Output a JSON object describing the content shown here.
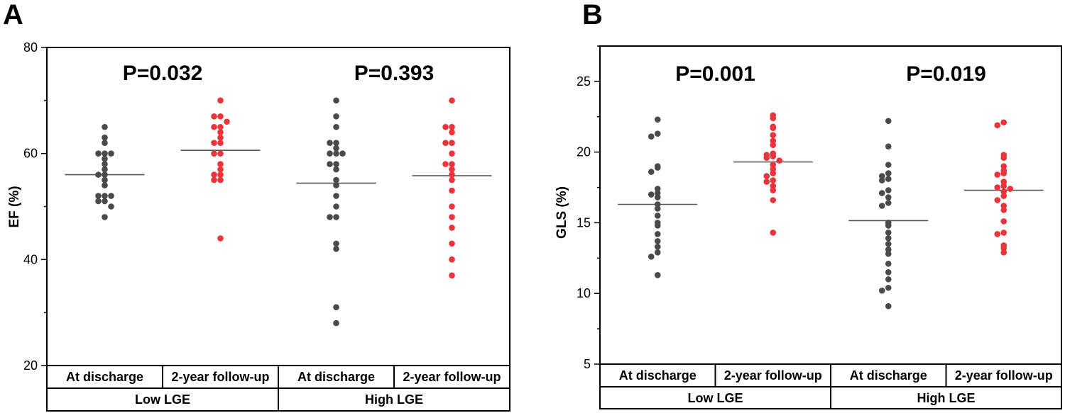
{
  "chart_data": [
    {
      "type": "scatter",
      "panel_label": "A",
      "ylabel": "EF (%)",
      "ylim": [
        20,
        80
      ],
      "yticks": [
        20,
        40,
        60,
        80
      ],
      "categories": [
        "At discharge",
        "2-year follow-up",
        "At discharge",
        "2-year follow-up"
      ],
      "groups": [
        {
          "label": "Low LGE",
          "p_value": "P=0.032"
        },
        {
          "label": "High LGE",
          "p_value": "P=0.393"
        }
      ],
      "point_colors": [
        "#4a4a4a",
        "#e8343a",
        "#4a4a4a",
        "#e8343a"
      ],
      "series": [
        {
          "category_index": 0,
          "mean": 56,
          "values": [
            65,
            63,
            62,
            60,
            60,
            60,
            59,
            58,
            57,
            56,
            56,
            55,
            54,
            52,
            52,
            52,
            51,
            51,
            50,
            48
          ]
        },
        {
          "category_index": 1,
          "mean": 60.6,
          "values": [
            70,
            67,
            67,
            66,
            65,
            65,
            64,
            63,
            62,
            62,
            60,
            60,
            58,
            57,
            56,
            56,
            55,
            55,
            44
          ]
        },
        {
          "category_index": 2,
          "mean": 54.4,
          "values": [
            70,
            67,
            65,
            62,
            62,
            61,
            60,
            60,
            60,
            58,
            58,
            57,
            55,
            54,
            52,
            50,
            48,
            48,
            43,
            42,
            31,
            28
          ]
        },
        {
          "category_index": 3,
          "mean": 55.8,
          "values": [
            70,
            65,
            65,
            64,
            62,
            62,
            60,
            58,
            58,
            57,
            56,
            55,
            53,
            50,
            48,
            46,
            43,
            40,
            37
          ]
        }
      ]
    },
    {
      "type": "scatter",
      "panel_label": "B",
      "ylabel": "GLS (%)",
      "ylim": [
        5,
        27.5
      ],
      "yticks": [
        5,
        10,
        15,
        20,
        25
      ],
      "categories": [
        "At discharge",
        "2-year follow-up",
        "At discharge",
        "2-year follow-up"
      ],
      "groups": [
        {
          "label": "Low LGE",
          "p_value": "P=0.001"
        },
        {
          "label": "High LGE",
          "p_value": "P=0.019"
        }
      ],
      "point_colors": [
        "#4a4a4a",
        "#e8343a",
        "#4a4a4a",
        "#e8343a"
      ],
      "series": [
        {
          "category_index": 0,
          "mean": 16.3,
          "values": [
            22.3,
            21.3,
            21.1,
            19,
            18.9,
            18.6,
            17.4,
            17.1,
            17,
            16.8,
            16.3,
            16,
            15.5,
            15,
            14.8,
            14.2,
            13.7,
            13.3,
            12.9,
            12.6,
            11.3
          ]
        },
        {
          "category_index": 1,
          "mean": 19.3,
          "values": [
            22.6,
            22.4,
            21.8,
            21.7,
            21.2,
            20.8,
            20.5,
            19.9,
            19.8,
            19.7,
            19.6,
            19.4,
            19.1,
            18.8,
            18.5,
            18.3,
            18,
            17.9,
            17.6,
            17.3,
            16.6,
            14.3
          ]
        },
        {
          "category_index": 2,
          "mean": 15.15,
          "values": [
            22.2,
            20.4,
            19.1,
            18.5,
            18.3,
            18.1,
            18,
            17.3,
            17.1,
            16.8,
            16.4,
            16.2,
            15,
            14.8,
            14.3,
            13.9,
            13.5,
            13.1,
            12.8,
            12.1,
            11.5,
            11,
            10.4,
            10.2,
            9.1
          ]
        },
        {
          "category_index": 3,
          "mean": 17.3,
          "values": [
            22.1,
            21.9,
            19.8,
            19.6,
            19,
            18.7,
            18.5,
            18.4,
            17.9,
            17.6,
            17.5,
            17.4,
            17.2,
            16.9,
            16.6,
            16.2,
            15.9,
            15.1,
            14.3,
            14.2,
            13.4,
            13.2,
            12.9
          ]
        }
      ]
    }
  ]
}
